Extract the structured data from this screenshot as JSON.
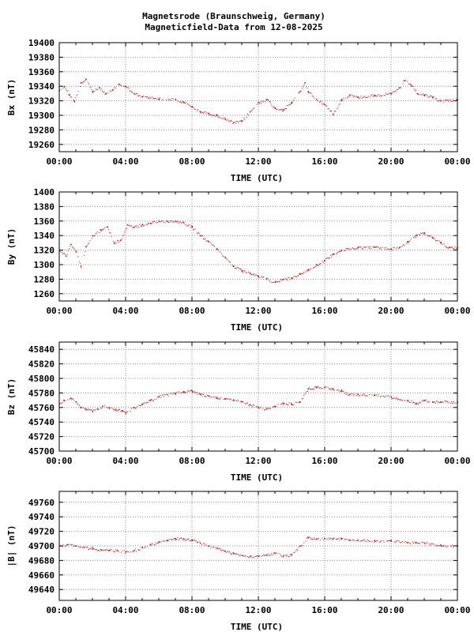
{
  "title_line1": "Magnetsrode (Braunschweig, Germany)",
  "title_line2": "Magneticfield-Data from 12-08-2025",
  "colors": {
    "series": "#cc0000",
    "grid": "#888888",
    "axis": "#000000"
  },
  "chart_data": [
    {
      "type": "line",
      "ylabel": "Bx (nT)",
      "xlabel": "TIME (UTC)",
      "xlim": [
        0,
        24
      ],
      "ylim": [
        19250,
        19400
      ],
      "x_ticks": [
        "00:00",
        "04:00",
        "08:00",
        "12:00",
        "16:00",
        "20:00",
        "00:00"
      ],
      "y_ticks": [
        "19260",
        "19280",
        "19300",
        "19320",
        "19340",
        "19360",
        "19380",
        "19400"
      ],
      "grid": true,
      "series": [
        {
          "x": [
            0,
            0.3,
            0.6,
            0.9,
            1.3,
            1.6,
            2.0,
            2.4,
            2.8,
            3.2,
            3.6,
            4.0,
            4.5,
            5.0,
            6.0,
            7.0,
            7.5,
            8.0,
            8.5,
            9.0,
            9.5,
            10.0,
            10.5,
            11.0,
            11.5,
            12.0,
            12.5,
            13.0,
            13.5,
            14.0,
            14.5,
            14.8,
            15.0,
            15.5,
            16.0,
            16.5,
            17.0,
            17.5,
            18.0,
            19.0,
            20.0,
            20.5,
            20.8,
            21.2,
            21.6,
            22.0,
            22.5,
            23.0,
            24.0
          ],
          "y": [
            19335,
            19340,
            19328,
            19320,
            19345,
            19350,
            19333,
            19338,
            19330,
            19335,
            19343,
            19340,
            19330,
            19326,
            19323,
            19322,
            19318,
            19312,
            19305,
            19303,
            19300,
            19295,
            19290,
            19292,
            19305,
            19318,
            19322,
            19310,
            19308,
            19318,
            19333,
            19345,
            19333,
            19322,
            19315,
            19302,
            19322,
            19328,
            19325,
            19328,
            19330,
            19338,
            19348,
            19342,
            19330,
            19328,
            19325,
            19320,
            19322
          ]
        }
      ]
    },
    {
      "type": "line",
      "ylabel": "By (nT)",
      "xlabel": "TIME (UTC)",
      "xlim": [
        0,
        24
      ],
      "ylim": [
        1250,
        1400
      ],
      "x_ticks": [
        "00:00",
        "04:00",
        "08:00",
        "12:00",
        "16:00",
        "20:00",
        "00:00"
      ],
      "y_ticks": [
        "1260",
        "1280",
        "1300",
        "1320",
        "1340",
        "1360",
        "1380",
        "1400"
      ],
      "grid": true,
      "series": [
        {
          "x": [
            0,
            0.4,
            0.7,
            1.0,
            1.3,
            1.6,
            2.0,
            2.5,
            2.9,
            3.3,
            3.7,
            4.1,
            4.5,
            5.0,
            5.5,
            6.0,
            6.5,
            7.0,
            7.5,
            8.0,
            8.5,
            9.0,
            9.5,
            10.0,
            10.5,
            11.0,
            11.5,
            12.0,
            12.5,
            13.0,
            13.5,
            14.0,
            14.5,
            15.0,
            15.5,
            16.0,
            16.5,
            17.0,
            18.0,
            19.0,
            20.0,
            20.5,
            21.0,
            21.5,
            22.0,
            22.5,
            23.0,
            23.5,
            24.0
          ],
          "y": [
            1320,
            1312,
            1328,
            1318,
            1298,
            1325,
            1340,
            1348,
            1352,
            1330,
            1334,
            1355,
            1352,
            1355,
            1357,
            1360,
            1360,
            1360,
            1358,
            1352,
            1340,
            1332,
            1322,
            1310,
            1298,
            1292,
            1288,
            1284,
            1281,
            1276,
            1280,
            1282,
            1288,
            1293,
            1300,
            1306,
            1315,
            1320,
            1324,
            1324,
            1322,
            1324,
            1332,
            1340,
            1344,
            1337,
            1330,
            1324,
            1324
          ]
        }
      ]
    },
    {
      "type": "line",
      "ylabel": "Bz (nT)",
      "xlabel": "TIME (UTC)",
      "xlim": [
        0,
        24
      ],
      "ylim": [
        45700,
        45850
      ],
      "x_ticks": [
        "00:00",
        "04:00",
        "08:00",
        "12:00",
        "16:00",
        "20:00",
        "00:00"
      ],
      "y_ticks": [
        "45700",
        "45720",
        "45740",
        "45760",
        "45780",
        "45800",
        "45820",
        "45840"
      ],
      "grid": true,
      "series": [
        {
          "x": [
            0,
            0.3,
            0.7,
            1.0,
            1.3,
            1.6,
            2.0,
            2.3,
            2.6,
            3.0,
            3.4,
            3.8,
            4.0,
            4.5,
            5.0,
            5.5,
            6.0,
            6.5,
            7.0,
            7.5,
            8.0,
            8.5,
            9.0,
            9.5,
            10.0,
            10.5,
            11.0,
            11.5,
            12.0,
            12.5,
            13.0,
            13.5,
            14.0,
            14.5,
            15.0,
            15.5,
            16.0,
            16.5,
            17.0,
            17.5,
            18.0,
            19.0,
            20.0,
            21.0,
            21.5,
            22.0,
            22.5,
            23.0,
            24.0
          ],
          "y": [
            45765,
            45770,
            45773,
            45768,
            45760,
            45758,
            45755,
            45758,
            45762,
            45760,
            45757,
            45756,
            45753,
            45760,
            45765,
            45770,
            45775,
            45778,
            45780,
            45782,
            45783,
            45778,
            45776,
            45774,
            45772,
            45770,
            45768,
            45764,
            45760,
            45758,
            45762,
            45766,
            45765,
            45768,
            45786,
            45788,
            45788,
            45786,
            45783,
            45778,
            45778,
            45777,
            45775,
            45770,
            45766,
            45770,
            45768,
            45768,
            45768
          ]
        }
      ]
    },
    {
      "type": "line",
      "ylabel": "|B| (nT)",
      "xlabel": "TIME (UTC)",
      "xlim": [
        0,
        24
      ],
      "ylim": [
        49625,
        49775
      ],
      "x_ticks": [
        "00:00",
        "04:00",
        "08:00",
        "12:00",
        "16:00",
        "20:00",
        "00:00"
      ],
      "y_ticks": [
        "49640",
        "49660",
        "49680",
        "49700",
        "49720",
        "49740",
        "49760"
      ],
      "grid": true,
      "series": [
        {
          "x": [
            0,
            0.5,
            1.0,
            1.5,
            2.0,
            2.5,
            3.0,
            3.5,
            4.0,
            4.5,
            5.0,
            5.5,
            6.0,
            6.5,
            7.0,
            7.5,
            8.0,
            8.5,
            9.0,
            9.5,
            10.0,
            10.5,
            11.0,
            11.5,
            12.0,
            12.5,
            13.0,
            13.5,
            14.0,
            14.5,
            15.0,
            15.5,
            16.0,
            16.5,
            17.0,
            17.5,
            18.0,
            19.0,
            20.0,
            21.0,
            21.5,
            22.0,
            23.0,
            24.0
          ],
          "y": [
            49700,
            49702,
            49700,
            49698,
            49697,
            49695,
            49694,
            49694,
            49692,
            49694,
            49698,
            49702,
            49706,
            49708,
            49710,
            49710,
            49708,
            49704,
            49700,
            49697,
            49693,
            49690,
            49687,
            49686,
            49686,
            49688,
            49690,
            49686,
            49688,
            49700,
            49712,
            49710,
            49710,
            49710,
            49710,
            49708,
            49708,
            49707,
            49707,
            49705,
            49705,
            49704,
            49701,
            49700
          ]
        }
      ]
    }
  ]
}
